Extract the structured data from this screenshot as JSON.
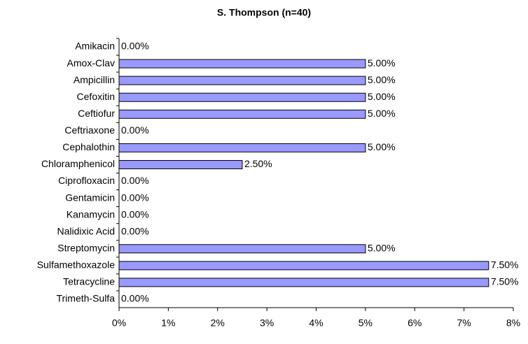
{
  "chart_data": {
    "type": "bar",
    "orientation": "horizontal",
    "title": "S. Thompson (n=40)",
    "categories": [
      "Amikacin",
      "Amox-Clav",
      "Ampicillin",
      "Cefoxitin",
      "Ceftiofur",
      "Ceftriaxone",
      "Cephalothin",
      "Chloramphenicol",
      "Ciprofloxacin",
      "Gentamicin",
      "Kanamycin",
      "Nalidixic Acid",
      "Streptomycin",
      "Sulfamethoxazole",
      "Tetracycline",
      "Trimeth-Sulfa"
    ],
    "values": [
      0,
      5,
      5,
      5,
      5,
      0,
      5,
      2.5,
      0,
      0,
      0,
      0,
      5,
      7.5,
      7.5,
      0
    ],
    "value_labels": [
      "0.00%",
      "5.00%",
      "5.00%",
      "5.00%",
      "5.00%",
      "0.00%",
      "5.00%",
      "2.50%",
      "0.00%",
      "0.00%",
      "0.00%",
      "0.00%",
      "5.00%",
      "7.50%",
      "7.50%",
      "0.00%"
    ],
    "color": "#9999ff",
    "xlim": [
      0,
      8
    ],
    "xticks": [
      {
        "value": 0,
        "label": "0%"
      },
      {
        "value": 1,
        "label": "1%"
      },
      {
        "value": 2,
        "label": "2%"
      },
      {
        "value": 3,
        "label": "3%"
      },
      {
        "value": 4,
        "label": "4%"
      },
      {
        "value": 5,
        "label": "5%"
      },
      {
        "value": 6,
        "label": "6%"
      },
      {
        "value": 7,
        "label": "7%"
      },
      {
        "value": 8,
        "label": "8%"
      }
    ],
    "grid": false
  }
}
